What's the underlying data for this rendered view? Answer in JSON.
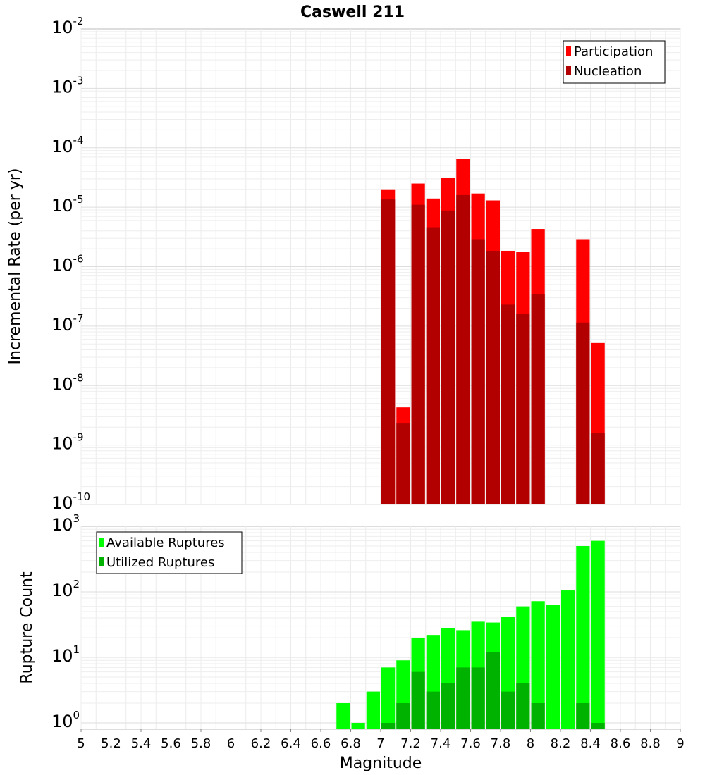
{
  "chart_data": [
    {
      "type": "bar",
      "title": "Caswell 211",
      "xlabel": "",
      "ylabel": "Incremental Rate (per yr)",
      "yscale": "log",
      "ylim_exp": [
        -10,
        -2
      ],
      "xlim": [
        5,
        9
      ],
      "bar_width": 0.1,
      "legend_position": "top-right",
      "series": [
        {
          "name": "Participation",
          "color": "#ff0000",
          "x": [
            7.05,
            7.15,
            7.25,
            7.35,
            7.45,
            7.55,
            7.65,
            7.75,
            7.85,
            7.95,
            8.05,
            8.35,
            8.45
          ],
          "values": [
            2e-05,
            4.3e-09,
            2.5e-05,
            1.4e-05,
            3.1e-05,
            6.5e-05,
            1.7e-05,
            1.3e-05,
            1.85e-06,
            1.75e-06,
            4.3e-06,
            2.9e-06,
            5.2e-08
          ]
        },
        {
          "name": "Nucleation",
          "color": "#b20000",
          "x": [
            7.05,
            7.15,
            7.25,
            7.35,
            7.45,
            7.55,
            7.65,
            7.75,
            7.85,
            7.95,
            8.05,
            8.35,
            8.45
          ],
          "values": [
            1.35e-05,
            2.3e-09,
            1.1e-05,
            4.6e-06,
            8.8e-06,
            1.6e-05,
            2.9e-06,
            1.85e-06,
            2.3e-07,
            1.6e-07,
            3.4e-07,
            1.15e-07,
            1.6e-09
          ]
        }
      ]
    },
    {
      "type": "bar",
      "title": "",
      "xlabel": "Magnitude",
      "ylabel": "Rupture Count",
      "yscale": "log",
      "ylim": [
        0.8,
        1000
      ],
      "xlim": [
        5,
        9
      ],
      "bar_width": 0.1,
      "legend_position": "top-left",
      "series": [
        {
          "name": "Available Ruptures",
          "color": "#00ff00",
          "x": [
            6.75,
            6.85,
            6.95,
            7.05,
            7.15,
            7.25,
            7.35,
            7.45,
            7.55,
            7.65,
            7.75,
            7.85,
            7.95,
            8.05,
            8.15,
            8.25,
            8.35,
            8.45
          ],
          "values": [
            2,
            1,
            3,
            7,
            9,
            20,
            22,
            28,
            26,
            35,
            34,
            41,
            60,
            72,
            64,
            105,
            500,
            600
          ]
        },
        {
          "name": "Utilized Ruptures",
          "color": "#00b200",
          "x": [
            7.05,
            7.15,
            7.25,
            7.35,
            7.45,
            7.55,
            7.65,
            7.75,
            7.85,
            7.95,
            8.05,
            8.35,
            8.45
          ],
          "values": [
            1,
            2,
            6,
            3,
            4,
            7,
            7,
            12,
            3,
            4,
            2,
            2,
            1
          ]
        }
      ],
      "x_ticks": [
        "5",
        "5.2",
        "5.4",
        "5.6",
        "5.8",
        "6",
        "6.2",
        "6.4",
        "6.6",
        "6.8",
        "7",
        "7.2",
        "7.4",
        "7.6",
        "7.8",
        "8",
        "8.2",
        "8.4",
        "8.6",
        "8.8",
        "9"
      ]
    }
  ]
}
